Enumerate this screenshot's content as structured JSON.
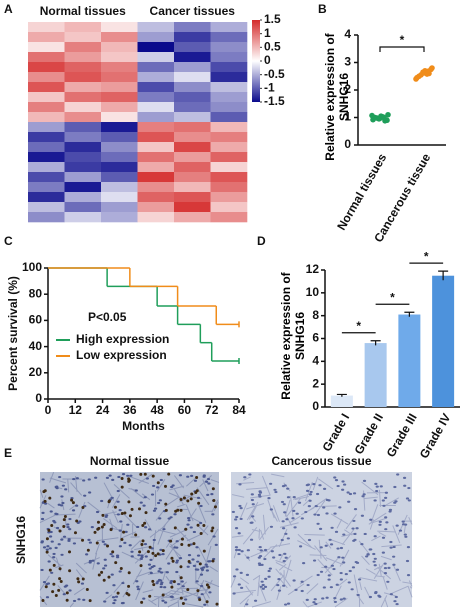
{
  "panel_labels": [
    "A",
    "B",
    "C",
    "D",
    "E"
  ],
  "chart_data": [
    {
      "type": "heatmap",
      "x_groups": [
        "Normal tissues",
        "Cancer tissues"
      ],
      "values": [
        [
          0.3,
          0.5,
          0.2,
          -0.4,
          -0.8,
          -0.5
        ],
        [
          0.6,
          0.4,
          0.8,
          -0.6,
          -1.2,
          -0.9
        ],
        [
          0.2,
          0.9,
          0.5,
          -1.5,
          -1.0,
          -0.7
        ],
        [
          1.0,
          0.7,
          0.4,
          -0.3,
          -1.4,
          -0.8
        ],
        [
          1.3,
          1.1,
          0.9,
          -0.9,
          -0.6,
          -1.1
        ],
        [
          0.8,
          1.2,
          1.0,
          -0.5,
          -0.2,
          -1.3
        ],
        [
          1.2,
          0.6,
          0.7,
          -1.1,
          -0.7,
          -0.4
        ],
        [
          0.4,
          1.0,
          1.1,
          -0.8,
          -1.0,
          -0.6
        ],
        [
          0.9,
          0.3,
          0.6,
          -0.2,
          -0.9,
          -0.7
        ],
        [
          0.5,
          0.8,
          0.2,
          -0.6,
          -0.4,
          -1.0
        ],
        [
          -0.6,
          -1.0,
          -1.4,
          0.9,
          1.0,
          0.5
        ],
        [
          -1.2,
          -0.8,
          -1.0,
          1.2,
          0.8,
          0.9
        ],
        [
          -0.9,
          -1.3,
          -0.7,
          0.4,
          1.3,
          0.6
        ],
        [
          -1.4,
          -1.1,
          -0.9,
          1.0,
          0.7,
          1.1
        ],
        [
          -0.5,
          -1.2,
          -1.3,
          0.6,
          1.1,
          0.3
        ],
        [
          -1.1,
          -0.6,
          -1.0,
          1.4,
          0.9,
          1.2
        ],
        [
          -0.8,
          -1.4,
          -0.4,
          0.8,
          0.5,
          1.0
        ],
        [
          -1.3,
          -0.5,
          -0.2,
          1.1,
          1.2,
          0.7
        ],
        [
          -0.4,
          -0.9,
          -0.6,
          0.7,
          1.4,
          0.4
        ],
        [
          -0.7,
          -0.3,
          -0.5,
          0.3,
          0.6,
          0.8
        ]
      ],
      "vlim": [
        -1.5,
        1.5
      ],
      "colorbar_ticks": [
        1.5,
        1,
        0.5,
        0,
        -0.5,
        -1,
        -1.5
      ],
      "low_color": "#0a0a8c",
      "mid_color": "#ffffff",
      "high_color": "#d42a2a"
    },
    {
      "type": "dot",
      "categories": [
        "Normal tissues",
        "Cancerous tissue"
      ],
      "y_label": "Relative expression of SNHG16",
      "ylim": [
        0,
        4
      ],
      "yticks": [
        0,
        1,
        2,
        3,
        4
      ],
      "groups": [
        {
          "color": "#1f9e5a",
          "values": [
            0.92,
            0.98,
            1.05,
            0.88,
            1.1,
            1.0,
            0.95,
            1.02,
            0.9,
            1.07,
            0.97,
            1.0
          ]
        },
        {
          "color": "#f08c1a",
          "values": [
            2.45,
            2.55,
            2.7,
            2.6,
            2.8,
            2.5,
            2.65,
            2.58,
            2.75,
            2.4,
            2.62,
            2.68
          ]
        }
      ],
      "annotation": "*"
    },
    {
      "type": "step",
      "x_label": "Months",
      "y_label": "Percent survival (%)",
      "xlim": [
        0,
        84
      ],
      "xticks": [
        0,
        12,
        24,
        36,
        48,
        60,
        72,
        84
      ],
      "ylim": [
        0,
        100
      ],
      "yticks": [
        0,
        20,
        40,
        60,
        80,
        100
      ],
      "annotation": "P<0.05",
      "series": [
        {
          "name": "High expression",
          "color": "#1f9e5a",
          "x": [
            0,
            26,
            48,
            57,
            67,
            72,
            84
          ],
          "values": [
            100,
            86,
            71,
            57,
            43,
            29,
            29
          ]
        },
        {
          "name": "Low expression",
          "color": "#f08c1a",
          "x": [
            0,
            36,
            57,
            74,
            84
          ],
          "values": [
            100,
            86,
            71,
            57,
            57
          ]
        }
      ]
    },
    {
      "type": "bar",
      "categories": [
        "Grade I",
        "Grade II",
        "Grade III",
        "Grade IV"
      ],
      "y_label": "Relative expression of SNHG16",
      "ylim": [
        0,
        12
      ],
      "yticks": [
        0,
        2,
        4,
        6,
        8,
        10,
        12
      ],
      "values": [
        1.0,
        5.6,
        8.1,
        11.5
      ],
      "errors": [
        0.1,
        0.2,
        0.2,
        0.4
      ],
      "colors": [
        "#dce8f7",
        "#a8c8ee",
        "#6faaea",
        "#4d92dc"
      ],
      "annotations": [
        "*",
        "*",
        "*"
      ]
    }
  ],
  "images": {
    "row_label": "SNHG16",
    "titles": [
      "Normal tissue",
      "Cancerous tissue"
    ]
  }
}
